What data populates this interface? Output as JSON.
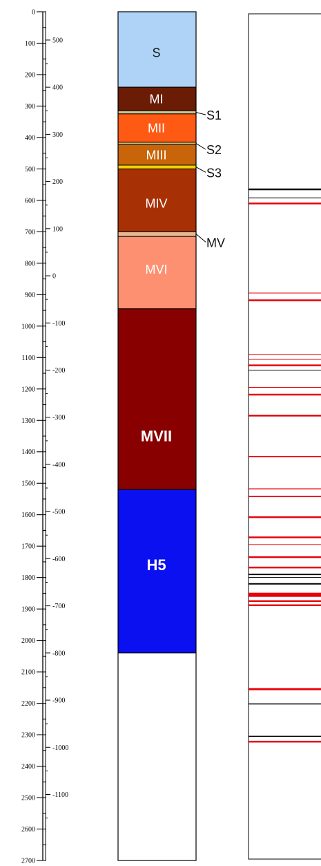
{
  "depth_axis": {
    "min": 0,
    "max": 2700,
    "labels": [
      0,
      100,
      200,
      300,
      400,
      500,
      600,
      700,
      800,
      900,
      1000,
      1100,
      1200,
      1300,
      1400,
      1500,
      1600,
      1700,
      1800,
      1900,
      2000,
      2100,
      2200,
      2300,
      2400,
      2500,
      2600,
      2700
    ],
    "minor_step": 50
  },
  "elevation_axis": {
    "labels": [
      {
        "text": "500",
        "depth": 90
      },
      {
        "text": "400",
        "depth": 240
      },
      {
        "text": "300",
        "depth": 390
      },
      {
        "text": "200",
        "depth": 540
      },
      {
        "text": "100",
        "depth": 690
      },
      {
        "text": "0",
        "depth": 840
      },
      {
        "text": "-100",
        "depth": 990
      },
      {
        "text": "-200",
        "depth": 1140
      },
      {
        "text": "-300",
        "depth": 1290
      },
      {
        "text": "-400",
        "depth": 1440
      },
      {
        "text": "-500",
        "depth": 1590
      },
      {
        "text": "-600",
        "depth": 1740
      },
      {
        "text": "-700",
        "depth": 1890
      },
      {
        "text": "-800",
        "depth": 2040
      },
      {
        "text": "-900",
        "depth": 2190
      },
      {
        "text": "-1000",
        "depth": 2340
      },
      {
        "text": "-1100",
        "depth": 2490
      }
    ],
    "minor_step": 50
  },
  "units": [
    {
      "name": "S",
      "top": 0,
      "bottom": 240,
      "color": "#aed3f7",
      "text_color": "#1a1a1a",
      "bold": false,
      "label_depth": 130
    },
    {
      "name": "MI",
      "top": 240,
      "bottom": 315,
      "color": "#6b1c05",
      "text_color": "#ffffff",
      "bold": false,
      "label_depth": 278
    },
    {
      "name": "S1",
      "top": 315,
      "bottom": 325,
      "color": "#d2c48a",
      "text_color": "#1a1a1a",
      "bold": false,
      "label_depth": 320,
      "callout": true,
      "callout_depth": 330
    },
    {
      "name": "MII",
      "top": 325,
      "bottom": 415,
      "color": "#ff5a14",
      "text_color": "#ffffff",
      "bold": false,
      "label_depth": 370
    },
    {
      "name": "S2",
      "top": 415,
      "bottom": 423,
      "color": "#d0b06a",
      "text_color": "#1a1a1a",
      "bold": false,
      "label_depth": 419,
      "callout": true,
      "callout_depth": 440
    },
    {
      "name": "MIII",
      "top": 423,
      "bottom": 488,
      "color": "#c8640a",
      "text_color": "#ffffff",
      "bold": false,
      "label_depth": 456
    },
    {
      "name": "S3",
      "top": 488,
      "bottom": 500,
      "color": "#f0d000",
      "text_color": "#1a1a1a",
      "bold": false,
      "label_depth": 494,
      "callout": true,
      "callout_depth": 513
    },
    {
      "name": "MIV",
      "top": 500,
      "bottom": 700,
      "color": "#a83005",
      "text_color": "#ffffff",
      "bold": false,
      "label_depth": 610
    },
    {
      "name": "MV",
      "top": 700,
      "bottom": 715,
      "color": "#e8b890",
      "text_color": "#1a1a1a",
      "bold": false,
      "label_depth": 707,
      "callout": true,
      "callout_depth": 735
    },
    {
      "name": "MVI",
      "top": 715,
      "bottom": 945,
      "color": "#fc9070",
      "text_color": "#ffffff",
      "bold": false,
      "label_depth": 820
    },
    {
      "name": "MVII",
      "top": 945,
      "bottom": 1520,
      "color": "#880000",
      "text_color": "#ffffff",
      "bold": true,
      "label_depth": 1350
    },
    {
      "name": "H5",
      "top": 1520,
      "bottom": 2040,
      "color": "#0a10f0",
      "text_color": "#ffffff",
      "bold": true,
      "label_depth": 1760
    },
    {
      "name": "",
      "top": 2040,
      "bottom": 2700,
      "color": "#ffffff",
      "text_color": "#1a1a1a",
      "bold": false,
      "label_depth": 2370
    }
  ],
  "markers": {
    "red": [
      {
        "depth": 610,
        "weight": 2.5
      },
      {
        "depth": 895,
        "weight": 1
      },
      {
        "depth": 918,
        "weight": 2.5
      },
      {
        "depth": 1090,
        "weight": 1
      },
      {
        "depth": 1106,
        "weight": 1
      },
      {
        "depth": 1125,
        "weight": 2.5
      },
      {
        "depth": 1195,
        "weight": 1
      },
      {
        "depth": 1218,
        "weight": 2.5
      },
      {
        "depth": 1285,
        "weight": 2.5
      },
      {
        "depth": 1415,
        "weight": 1.5
      },
      {
        "depth": 1518,
        "weight": 1.5
      },
      {
        "depth": 1542,
        "weight": 1.5
      },
      {
        "depth": 1608,
        "weight": 2.5
      },
      {
        "depth": 1672,
        "weight": 2.5
      },
      {
        "depth": 1695,
        "weight": 1
      },
      {
        "depth": 1735,
        "weight": 2.5
      },
      {
        "depth": 1768,
        "weight": 2.5
      },
      {
        "depth": 1855,
        "weight": 6
      },
      {
        "depth": 1875,
        "weight": 2.5
      },
      {
        "depth": 1888,
        "weight": 2.5
      },
      {
        "depth": 2155,
        "weight": 3
      },
      {
        "depth": 2322,
        "weight": 2.5
      }
    ],
    "black": [
      {
        "depth": 565,
        "weight": 2.5
      },
      {
        "depth": 592,
        "weight": 1
      },
      {
        "depth": 1140,
        "weight": 1
      },
      {
        "depth": 1790,
        "weight": 2
      },
      {
        "depth": 1800,
        "weight": 1
      },
      {
        "depth": 1820,
        "weight": 2
      },
      {
        "depth": 2202,
        "weight": 1.5
      },
      {
        "depth": 2305,
        "weight": 1.5
      }
    ]
  },
  "colors": {
    "red_marker": "#e8000a",
    "black_marker": "#000000",
    "callout_line": "#000000"
  }
}
